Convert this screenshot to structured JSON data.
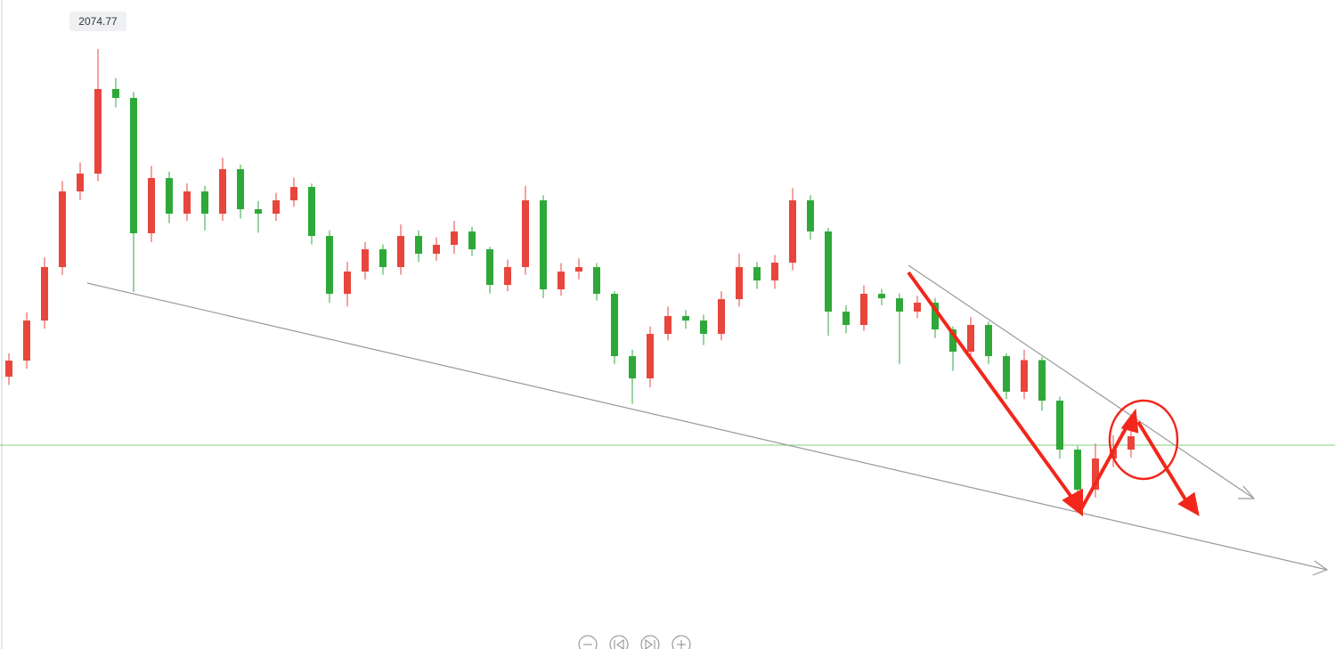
{
  "chart_data": {
    "type": "candlestick",
    "ylim": [
      1562.6,
      2116.6
    ],
    "up_color": "#e8453c",
    "down_color": "#2fa83a",
    "price_line": 1736.6,
    "price_line_color": "#7ed37e",
    "open": [
      1795.0,
      1808.8,
      1843.0,
      1888.6,
      1953.2,
      1968.4,
      2040.6,
      2033.0,
      1917.5,
      1964.6,
      1934.2,
      1953.2,
      1934.2,
      1972.2,
      1938.0,
      1934.2,
      1945.6,
      1957.0,
      1915.2,
      1865.8,
      1884.8,
      1903.8,
      1888.6,
      1915.2,
      1900.0,
      1907.6,
      1919.0,
      1903.8,
      1873.4,
      1888.6,
      1945.6,
      1869.6,
      1884.8,
      1888.6,
      1865.8,
      1812.6,
      1793.6,
      1831.6,
      1846.8,
      1843.0,
      1831.6,
      1861.2,
      1888.6,
      1877.2,
      1892.4,
      1945.6,
      1919.0,
      1850.6,
      1839.2,
      1865.8,
      1862.0,
      1850.6,
      1858.2,
      1835.4,
      1816.4,
      1839.2,
      1812.6,
      1782.2,
      1809.2,
      1774.6,
      1732.8,
      1698.6,
      1725.2,
      1732.8
    ],
    "high": [
      1815,
      1850,
      1897,
      1962,
      1978,
      2074.77,
      2050,
      2038,
      1975,
      1970,
      1960,
      1958,
      1982,
      1976,
      1945,
      1952,
      1965,
      1960,
      1920,
      1893,
      1910,
      1908,
      1925,
      1920,
      1914,
      1928,
      1923,
      1906,
      1895,
      1958,
      1950,
      1892,
      1896,
      1892,
      1868,
      1818,
      1838,
      1855,
      1852,
      1848,
      1868,
      1900,
      1893,
      1899,
      1956,
      1950,
      1922,
      1856,
      1873,
      1870,
      1866,
      1864,
      1862,
      1838,
      1846,
      1842,
      1815,
      1818,
      1812,
      1778,
      1736,
      1738,
      1745,
      1750
    ],
    "low": [
      1788,
      1802,
      1836,
      1882,
      1946,
      1962,
      2025,
      1867.3,
      1910,
      1926,
      1928,
      1920,
      1928,
      1930,
      1918,
      1928,
      1940,
      1908,
      1858,
      1855,
      1878,
      1882,
      1882,
      1893,
      1894,
      1900,
      1898,
      1866,
      1868,
      1882,
      1862,
      1864,
      1878,
      1860,
      1806,
      1772,
      1786,
      1826,
      1836,
      1822,
      1826,
      1855,
      1870,
      1870,
      1886,
      1912,
      1830,
      1832,
      1834,
      1856,
      1806,
      1845,
      1828,
      1800,
      1810,
      1806,
      1776,
      1776,
      1766,
      1725,
      1690,
      1692,
      1718,
      1726
    ],
    "close": [
      1808.8,
      1843.0,
      1888.6,
      1953.2,
      1968.4,
      2040.6,
      2033.0,
      1917.5,
      1964.6,
      1934.2,
      1953.2,
      1934.2,
      1972.2,
      1938.0,
      1934.2,
      1945.6,
      1957.0,
      1915.2,
      1865.8,
      1884.8,
      1903.8,
      1888.6,
      1915.2,
      1900.0,
      1907.6,
      1919.0,
      1903.8,
      1873.4,
      1888.6,
      1945.6,
      1869.6,
      1884.8,
      1888.6,
      1865.8,
      1812.6,
      1793.6,
      1831.6,
      1846.8,
      1843.0,
      1831.6,
      1861.2,
      1888.6,
      1877.2,
      1892.4,
      1945.6,
      1919.0,
      1850.6,
      1839.2,
      1865.8,
      1862.0,
      1850.6,
      1858.2,
      1835.4,
      1816.4,
      1839.2,
      1812.6,
      1782.2,
      1809.2,
      1774.6,
      1732.8,
      1698.6,
      1725.2,
      1732.8,
      1744.2
    ]
  }
}
